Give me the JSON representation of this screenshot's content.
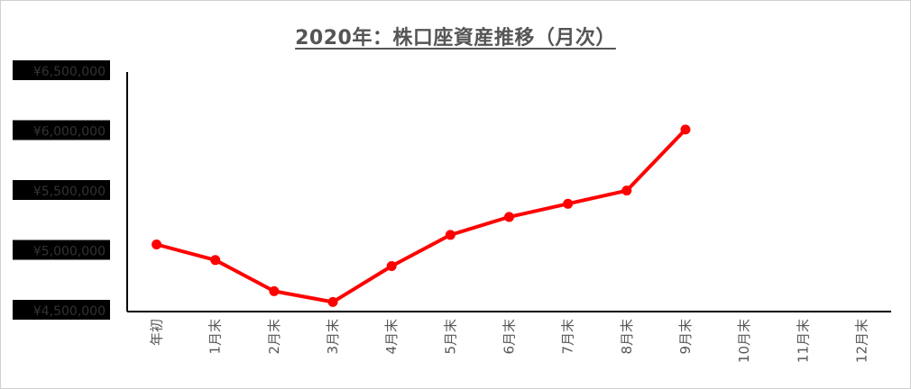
{
  "chart_data": {
    "type": "line",
    "title": "2020年：株口座資産推移（月次）",
    "categories": [
      "年初",
      "1月末",
      "2月末",
      "3月末",
      "4月末",
      "5月末",
      "6月末",
      "7月末",
      "8月末",
      "9月末",
      "10月末",
      "11月末",
      "12月末"
    ],
    "series": [
      {
        "values": [
          5060000,
          4930000,
          4670000,
          4580000,
          4880000,
          5140000,
          5290000,
          5400000,
          5510000,
          6020000,
          null,
          null,
          null
        ],
        "color": "#ff0000"
      }
    ],
    "ylim": [
      4500000,
      6500000
    ],
    "yticks": [
      4500000,
      5000000,
      5500000,
      6000000,
      6500000
    ],
    "ytick_labels": [
      "¥4,500,000",
      "¥5,000,000",
      "¥5,500,000",
      "¥6,000,000",
      "¥6,500,000"
    ],
    "grid": false,
    "legend": "none"
  }
}
